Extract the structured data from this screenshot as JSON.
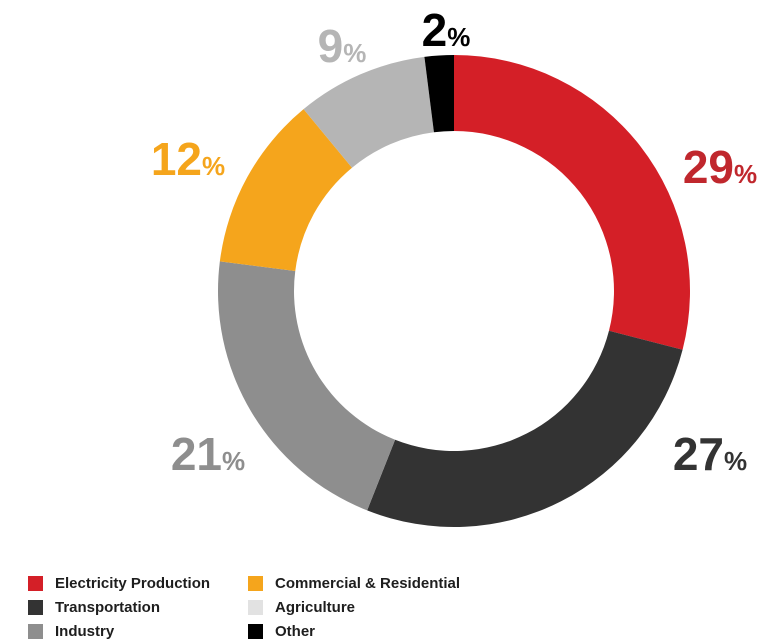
{
  "chart_data": {
    "type": "pie",
    "style": "donut",
    "unit_symbol": "%",
    "categories": [
      "Electricity Production",
      "Transportation",
      "Industry",
      "Commercial & Residential",
      "Agriculture",
      "Other"
    ],
    "values": [
      29,
      27,
      21,
      12,
      9,
      2
    ],
    "colors": [
      "#d41f27",
      "#333333",
      "#8e8e8e",
      "#f5a51c",
      "#b5b5b5",
      "#000000"
    ],
    "label_colors": [
      "#c0272d",
      "#333333",
      "#8e8e8e",
      "#f5a51c",
      "#b5b5b5",
      "#000000"
    ],
    "legend_colors": [
      "#d41f27",
      "#333333",
      "#8e8e8e",
      "#f5a51c",
      "#e2e2e2",
      "#000000"
    ],
    "legend_position": "bottom-left"
  }
}
